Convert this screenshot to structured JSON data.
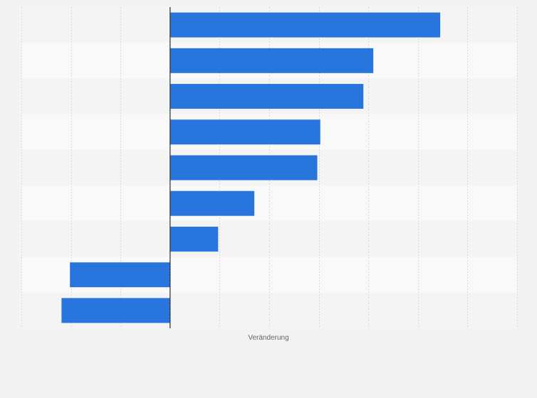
{
  "colors": {
    "background": "#f3f3f3",
    "band_odd": "#f4f4f4",
    "band_even": "#f9f9f9",
    "bar": "#2876dd",
    "grid": "#d9d9d9",
    "axis": "#333333"
  },
  "chart_data": {
    "type": "bar",
    "orientation": "horizontal",
    "categories": [
      "",
      "",
      "",
      "",
      "",
      "",
      "",
      "",
      ""
    ],
    "values": [
      5.45,
      4.1,
      3.9,
      3.03,
      2.97,
      1.7,
      0.97,
      -2.02,
      -2.19
    ],
    "xlabel": "Veränderung",
    "ylabel": "",
    "xlim": [
      -3,
      7
    ],
    "grid": true,
    "legend": "none"
  }
}
